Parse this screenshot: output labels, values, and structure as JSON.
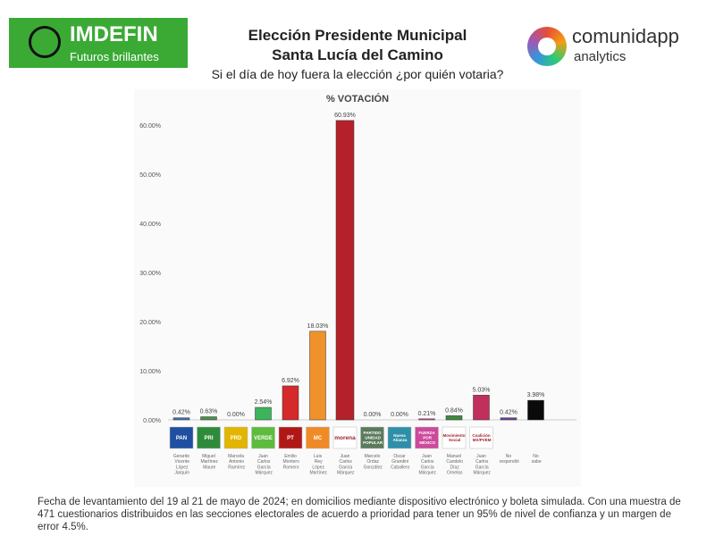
{
  "header": {
    "brand_left": "IMDEFIN",
    "brand_left_tagline": "Futuros brillantes",
    "title_line1": "Elección Presidente Municipal",
    "title_line2": "Santa Lucía del Camino",
    "question": "Si el día de hoy fuera la elección ¿por quién votaria?",
    "brand_right": "comunidapp",
    "brand_right_sub": "analytics"
  },
  "chart_data": {
    "type": "bar",
    "title": "% VOTACIÓN",
    "ylim": [
      0,
      60
    ],
    "yticks": [
      "0.00%",
      "10.00%",
      "20.00%",
      "30.00%",
      "40.00%",
      "50.00%",
      "60.00%"
    ],
    "grid": false,
    "categories": [
      "Gerardo Vicente López Jarquín",
      "Miguel Martínez Maure",
      "Marcela Antonio Ramírez",
      "Juan Carlos García Márquez",
      "Emilio Montero Romero",
      "Luis Rey López Martínez",
      "Juan Carlos García Márquez",
      "Marcelo Ordaz González",
      "Oscar Grandini Caballero",
      "Juan Carlos García Márquez",
      "Manuel Candelo Díaz Ornelas",
      "Juan Carlos García Márquez",
      "No respondió",
      "No sabe"
    ],
    "parties": [
      "PAN",
      "PRI",
      "PRD",
      "VERDE",
      "PT",
      "MC",
      "morena",
      "PARTIDO UNIDAD POPULAR",
      "Nueva Alianza",
      "FUERZA POR MÉXICO",
      "Movimiento Social",
      "Coalición MX/PVEM",
      "",
      ""
    ],
    "values": [
      0.42,
      0.63,
      0.0,
      2.54,
      6.92,
      18.03,
      60.93,
      0.0,
      0.0,
      0.21,
      0.84,
      5.03,
      0.42,
      3.98
    ],
    "labels": [
      "0.42%",
      "0.63%",
      "0.00%",
      "2.54%",
      "6.92%",
      "18.03%",
      "60.93%",
      "0.00%",
      "0.00%",
      "0.21%",
      "0.84%",
      "5.03%",
      "0.42%",
      "3.98%"
    ],
    "colors": [
      "#3b6fb6",
      "#4c8f4c",
      "#999999",
      "#3cb55a",
      "#d42a2a",
      "#f0922b",
      "#b5212a",
      "#777777",
      "#777777",
      "#d9479a",
      "#3d8a3d",
      "#c0305a",
      "#6a3c9a",
      "#0a0a0a"
    ],
    "logo_colors": [
      "#1f4fa0",
      "#2e8b3a",
      "#e2b500",
      "#5dbb3e",
      "#b01818",
      "#f08a24",
      "#ffffff",
      "#5b7a5b",
      "#2e8fa8",
      "#cc4a9c",
      "#ffffff",
      "#ffffff",
      "",
      ""
    ]
  },
  "footer": "Fecha de levantamiento del 19 al 21 de mayo de 2024; en domicilios mediante dispositivo electrónico y boleta simulada. Con una muestra de 471 cuestionarios distribuidos en las secciones electorales de acuerdo a prioridad para tener un 95% de nivel de confianza y un margen de error 4.5%."
}
